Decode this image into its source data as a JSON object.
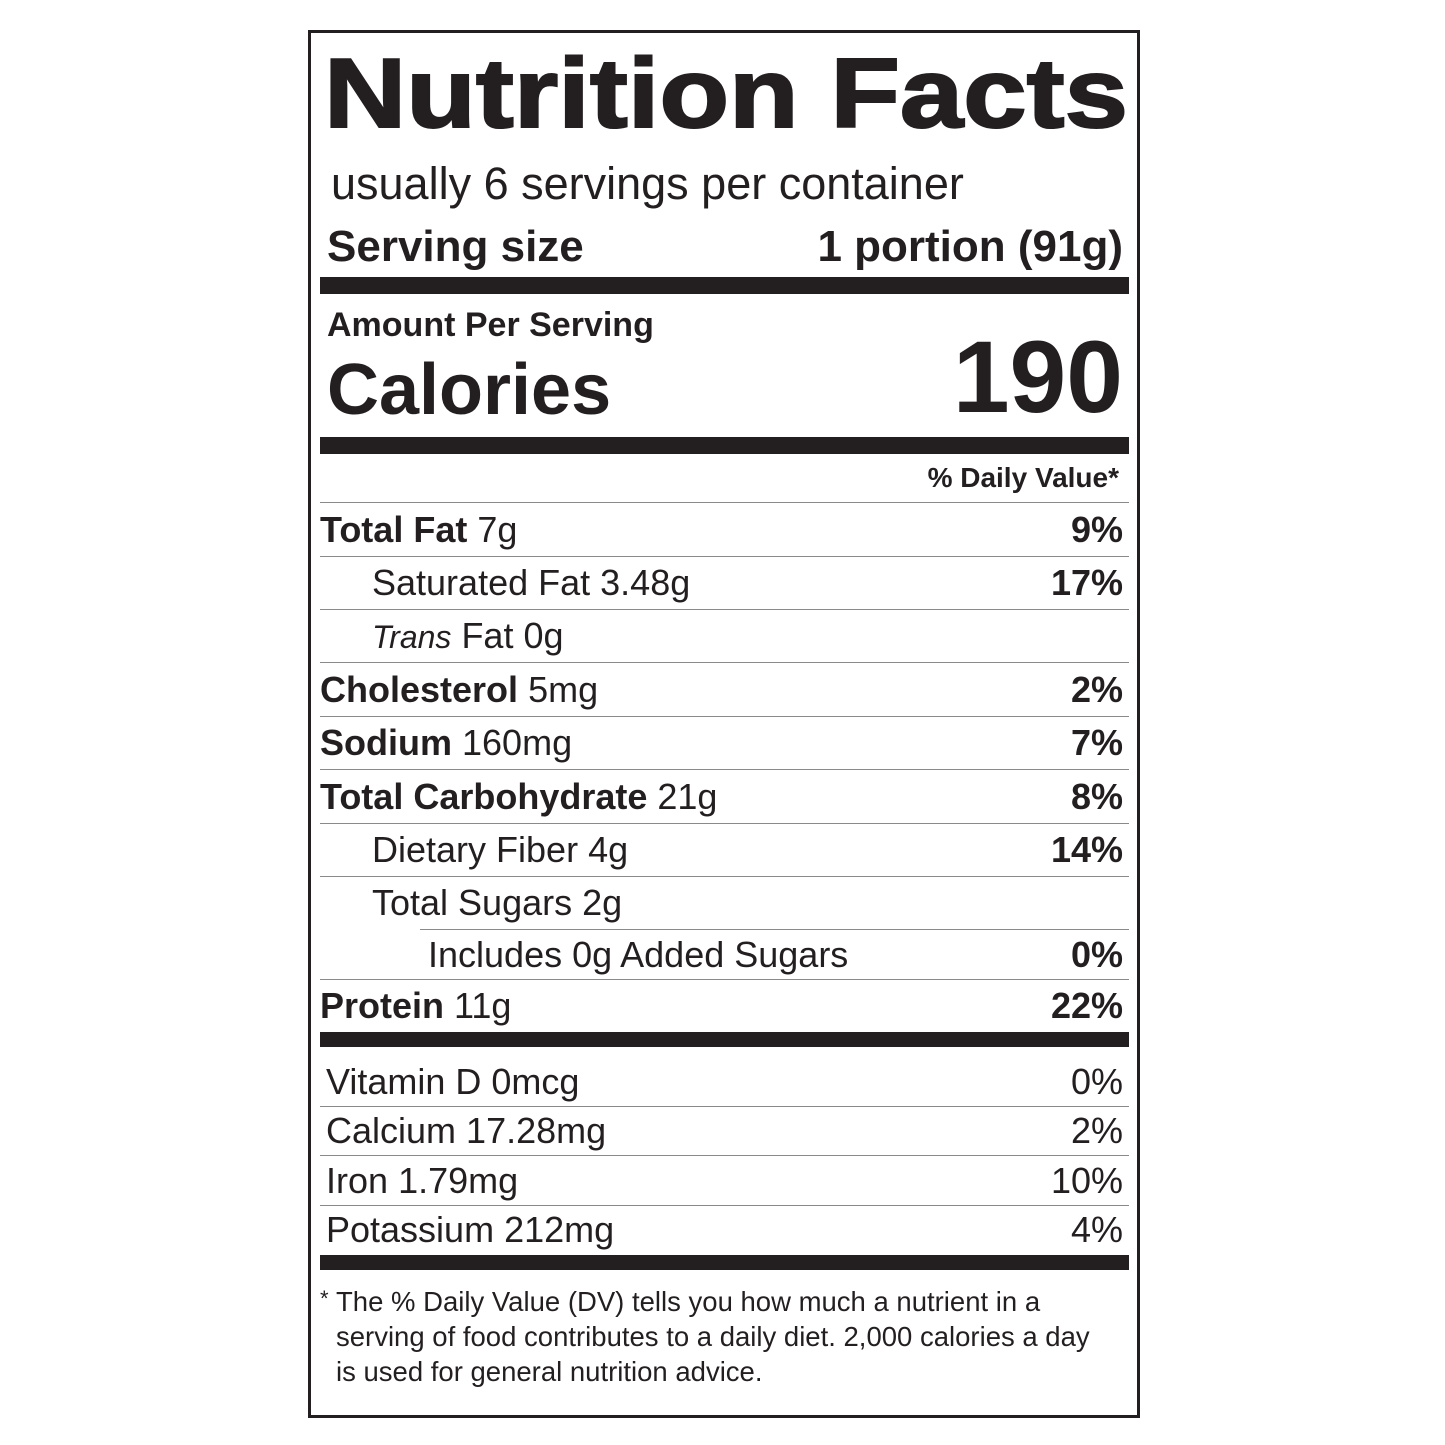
{
  "title": "Nutrition Facts",
  "servings": "usually 6 servings per container",
  "serving_size": {
    "label": "Serving size",
    "value": "1 portion (91g)"
  },
  "amount_per_serving": "Amount Per Serving",
  "calories": {
    "label": "Calories",
    "value": "190"
  },
  "daily_value_header": "% Daily Value*",
  "nutrients": [
    {
      "name": "Total Fat",
      "amount": "7g",
      "dv": "9%"
    },
    {
      "name": "Saturated Fat",
      "amount": "3.48g",
      "dv": "17%"
    },
    {
      "prefix": "Trans",
      "name": "Fat",
      "amount": "0g"
    },
    {
      "name": "Cholesterol",
      "amount": "5mg",
      "dv": "2%"
    },
    {
      "name": "Sodium",
      "amount": "160mg",
      "dv": "7%"
    },
    {
      "name": "Total Carbohydrate",
      "amount": "21g",
      "dv": "8%"
    },
    {
      "name": "Dietary Fiber",
      "amount": "4g",
      "dv": "14%"
    },
    {
      "name": "Total Sugars",
      "amount": "2g"
    },
    {
      "name": "Includes 0g Added Sugars",
      "dv": "0%"
    },
    {
      "name": "Protein",
      "amount": "11g",
      "dv": "22%"
    }
  ],
  "vitamins": [
    {
      "name": "Vitamin D",
      "amount": "0mcg",
      "dv": "0%"
    },
    {
      "name": "Calcium",
      "amount": "17.28mg",
      "dv": "2%"
    },
    {
      "name": "Iron",
      "amount": "1.79mg",
      "dv": "10%"
    },
    {
      "name": "Potassium",
      "amount": "212mg",
      "dv": "4%"
    }
  ],
  "footnote": {
    "mark": "*",
    "text": "The % Daily Value (DV) tells you how much a nutrient in a serving of food contributes to a daily diet. 2,000 calories a day is used for general nutrition advice."
  }
}
